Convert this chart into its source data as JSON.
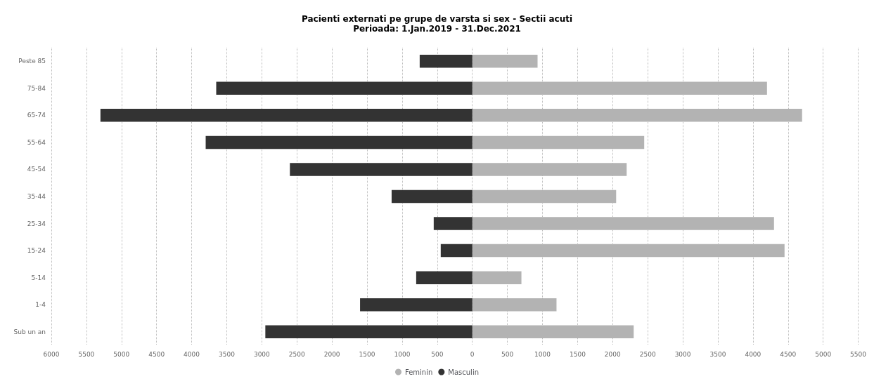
{
  "chart_data": {
    "type": "bar",
    "orientation": "horizontal",
    "stacked": true,
    "title": "Pacienti externati pe grupe de varsta si sex - Sectii acuti",
    "subtitle": "Perioada: 1.Jan.2019 - 31.Dec.2021",
    "categories": [
      "Peste 85",
      "75-84",
      "65-74",
      "55-64",
      "45-54",
      "35-44",
      "25-34",
      "15-24",
      "5-14",
      "1-4",
      "Sub un an"
    ],
    "series": [
      {
        "name": "Feminin",
        "color": "#b3b3b3",
        "values": [
          930,
          4200,
          4700,
          2450,
          2200,
          2050,
          4300,
          4450,
          700,
          1200,
          2300
        ]
      },
      {
        "name": "Masculin",
        "color": "#333333",
        "values": [
          -750,
          -3650,
          -5300,
          -3800,
          -2600,
          -1150,
          -550,
          -450,
          -800,
          -1600,
          -2950
        ]
      }
    ],
    "xlim": [
      -6000,
      5500
    ],
    "xticks": [
      {
        "value": -6000,
        "label": "6000"
      },
      {
        "value": -5500,
        "label": "5500"
      },
      {
        "value": -5000,
        "label": "5000"
      },
      {
        "value": -4500,
        "label": "4500"
      },
      {
        "value": -4000,
        "label": "4000"
      },
      {
        "value": -3500,
        "label": "3500"
      },
      {
        "value": -3000,
        "label": "3000"
      },
      {
        "value": -2500,
        "label": "2500"
      },
      {
        "value": -2000,
        "label": "2000"
      },
      {
        "value": -1500,
        "label": "1500"
      },
      {
        "value": -1000,
        "label": "1000"
      },
      {
        "value": -500,
        "label": "500"
      },
      0,
      500,
      1000,
      1500,
      2000,
      2500,
      3000,
      3500,
      4000,
      4500,
      5000,
      5500
    ],
    "grid": "x",
    "legend": "bottom"
  }
}
